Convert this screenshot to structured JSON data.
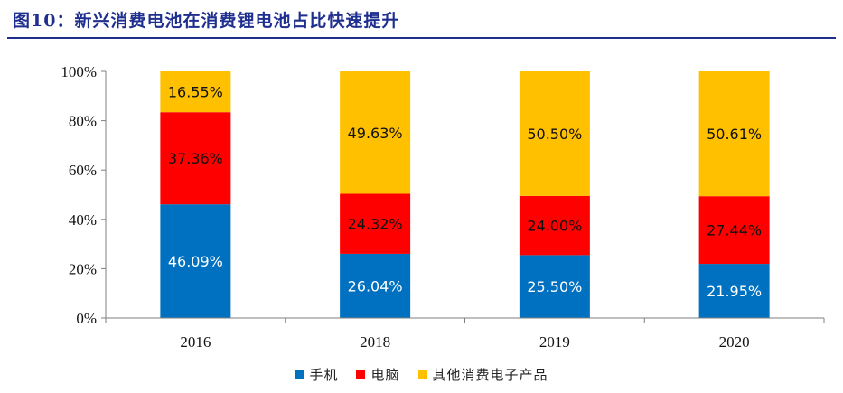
{
  "title": "图10：新兴消费电池在消费锂电池占比快速提升",
  "chart_data": {
    "type": "bar",
    "stacked": true,
    "categories": [
      "2016",
      "2018",
      "2019",
      "2020"
    ],
    "series": [
      {
        "name": "手机",
        "color": "#0070c0",
        "values": [
          46.09,
          26.04,
          25.5,
          21.95
        ],
        "labels": [
          "46.09%",
          "26.04%",
          "25.50%",
          "21.95%"
        ]
      },
      {
        "name": "电脑",
        "color": "#ff0000",
        "values": [
          37.36,
          24.32,
          24.0,
          27.44
        ],
        "labels": [
          "37.36%",
          "24.32%",
          "24.00%",
          "27.44%"
        ]
      },
      {
        "name": "其他消费电子产品",
        "color": "#ffc000",
        "values": [
          16.55,
          49.63,
          50.5,
          50.61
        ],
        "labels": [
          "16.55%",
          "49.63%",
          "50.50%",
          "50.61%"
        ]
      }
    ],
    "yticks": [
      "0%",
      "20%",
      "40%",
      "60%",
      "80%",
      "100%"
    ],
    "ylim": [
      0,
      100
    ],
    "grid": false,
    "legend_position": "bottom"
  }
}
